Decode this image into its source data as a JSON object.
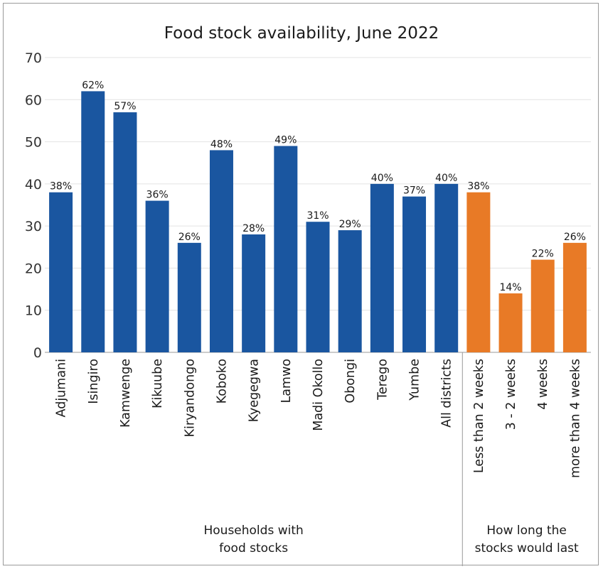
{
  "chart_data": {
    "type": "bar",
    "title": "Food stock availability, June 2022",
    "xlabel": "",
    "ylabel": "",
    "ylim": [
      0,
      70
    ],
    "yticks": [
      0,
      10,
      20,
      30,
      40,
      50,
      60,
      70
    ],
    "grid": true,
    "categories": [
      "Adjumani",
      "Isingiro",
      "Kamwenge",
      "Kikuube",
      "Kiryandongo",
      "Koboko",
      "Kyegegwa",
      "Lamwo",
      "Madi Okollo",
      "Obongi",
      "Terego",
      "Yumbe",
      "All districts",
      "Less than 2 weeks",
      "3 - 2 weeks",
      "4 weeks",
      "more than 4 weeks"
    ],
    "values": [
      38,
      62,
      57,
      36,
      26,
      48,
      28,
      49,
      31,
      29,
      40,
      37,
      40,
      38,
      14,
      22,
      26
    ],
    "data_labels": [
      "38%",
      "62%",
      "57%",
      "36%",
      "26%",
      "48%",
      "28%",
      "49%",
      "31%",
      "29%",
      "40%",
      "37%",
      "40%",
      "38%",
      "14%",
      "22%",
      "26%"
    ],
    "groups": [
      {
        "label_line1": "Households with",
        "label_line2": "food stocks",
        "first_index": 0,
        "count": 13,
        "color": "#1a56a0"
      },
      {
        "label_line1": "How long the",
        "label_line2": "stocks would last",
        "first_index": 13,
        "count": 4,
        "color": "#e87a26"
      }
    ]
  },
  "colors": {
    "grid": "#e3e3e3",
    "axis": "#9a9a9a",
    "separator": "#9a9a9a"
  }
}
